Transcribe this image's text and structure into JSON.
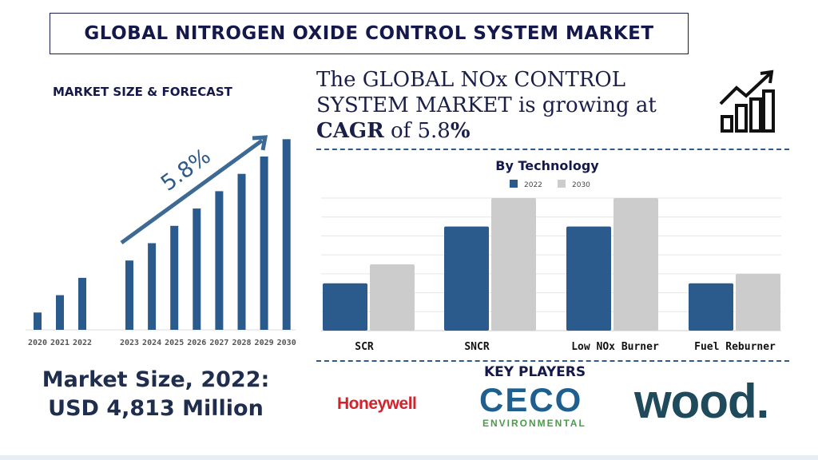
{
  "title": "GLOBAL NITROGEN OXIDE CONTROL SYSTEM MARKET",
  "market_size_label": "MARKET SIZE & FORECAST",
  "headline": {
    "line1": "The GLOBAL NOx CONTROL",
    "line2": "SYSTEM MARKET is growing at",
    "cagr_word": "CAGR",
    "cagr_rest": " of 5.8",
    "pct": "%"
  },
  "market_size": {
    "line1": "Market Size, 2022:",
    "line2": "USD 4,813  Million"
  },
  "key_players": {
    "label": "KEY PLAYERS",
    "logos": [
      "Honeywell",
      "CECO",
      "ENVIRONMENTAL",
      "wood."
    ]
  },
  "icons": [
    "growth-chart-icon"
  ],
  "colors": {
    "navy": "#14184a",
    "bar_blue": "#2a5b8c",
    "bar_grey": "#cccccc"
  },
  "chart_data": [
    {
      "type": "bar",
      "title": "",
      "annotation": "5.8%",
      "categories": [
        "2020",
        "2021",
        "2022",
        "2023",
        "2024",
        "2025",
        "2026",
        "2027",
        "2028",
        "2029",
        "2030"
      ],
      "values": [
        1,
        2,
        3,
        4,
        5,
        6,
        7,
        8,
        9,
        10,
        11
      ],
      "color": "#2a5b8c",
      "grid": false
    },
    {
      "type": "bar",
      "title": "By Technology",
      "categories": [
        "SCR",
        "SNCR",
        "Low NOx Burner",
        "Fuel Reburner"
      ],
      "series": [
        {
          "name": "2022",
          "values": [
            2.5,
            5.5,
            5.5,
            2.5
          ],
          "color": "#2a5b8c"
        },
        {
          "name": "2030",
          "values": [
            3.5,
            7,
            7,
            3
          ],
          "color": "#cccccc"
        }
      ],
      "ylim": [
        0,
        7
      ],
      "grid": true,
      "legend": "top"
    }
  ]
}
